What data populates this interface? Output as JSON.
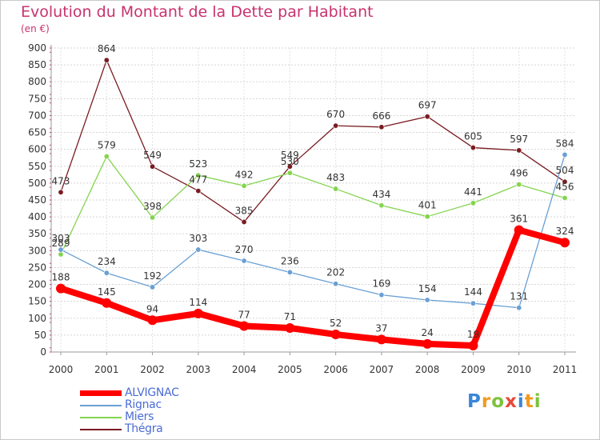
{
  "header": {
    "title": "Evolution du Montant de la Dette par Habitant",
    "unit": "(en €)"
  },
  "logo": {
    "text": "Proxiti",
    "colors": [
      "#3a86d8",
      "#f29a1d",
      "#7cc23b",
      "#e8483a",
      "#3a86d8",
      "#f29a1d",
      "#7cc23b"
    ]
  },
  "chart_data": {
    "type": "line",
    "title": "Evolution du Montant de la Dette par Habitant",
    "ylabel": "(en €)",
    "xlabel": "",
    "x": [
      "2000",
      "2001",
      "2002",
      "2003",
      "2004",
      "2005",
      "2006",
      "2007",
      "2008",
      "2009",
      "2010",
      "2011"
    ],
    "ylim": [
      0,
      900
    ],
    "yticks": [
      0,
      50,
      100,
      150,
      200,
      250,
      300,
      350,
      400,
      450,
      500,
      550,
      600,
      650,
      700,
      750,
      800,
      850,
      900
    ],
    "grid": "horizontal",
    "legend": "bottom-left",
    "series": [
      {
        "name": "Thégra",
        "color": "#7a1c22",
        "values": [
          473,
          864,
          549,
          477,
          385,
          549,
          670,
          666,
          697,
          605,
          597,
          504
        ]
      },
      {
        "name": "Miers",
        "color": "#84d44e",
        "values": [
          289,
          579,
          398,
          523,
          492,
          530,
          483,
          434,
          401,
          441,
          496,
          456
        ],
        "labels": [
          "289",
          "579",
          "398",
          "523",
          "492",
          "530",
          "483",
          "434",
          "401",
          "441",
          "496",
          "456"
        ]
      },
      {
        "name": "Rignac",
        "color": "#6aa0d4",
        "values": [
          303,
          234,
          192,
          303,
          270,
          236,
          202,
          169,
          154,
          144,
          131,
          584
        ],
        "labels": [
          "303",
          "234",
          "192",
          "303",
          "270",
          "236",
          "202",
          "169",
          "154",
          "144",
          "131",
          "584"
        ]
      },
      {
        "name": "ALVIGNAC",
        "color": "#ff0000",
        "values": [
          188,
          145,
          94,
          114,
          77,
          71,
          52,
          37,
          24,
          19,
          361,
          324
        ],
        "labels": [
          "188",
          "145",
          "94",
          "114",
          "77",
          "71",
          "52",
          "37",
          "24",
          "19",
          "361",
          "324"
        ]
      }
    ]
  }
}
